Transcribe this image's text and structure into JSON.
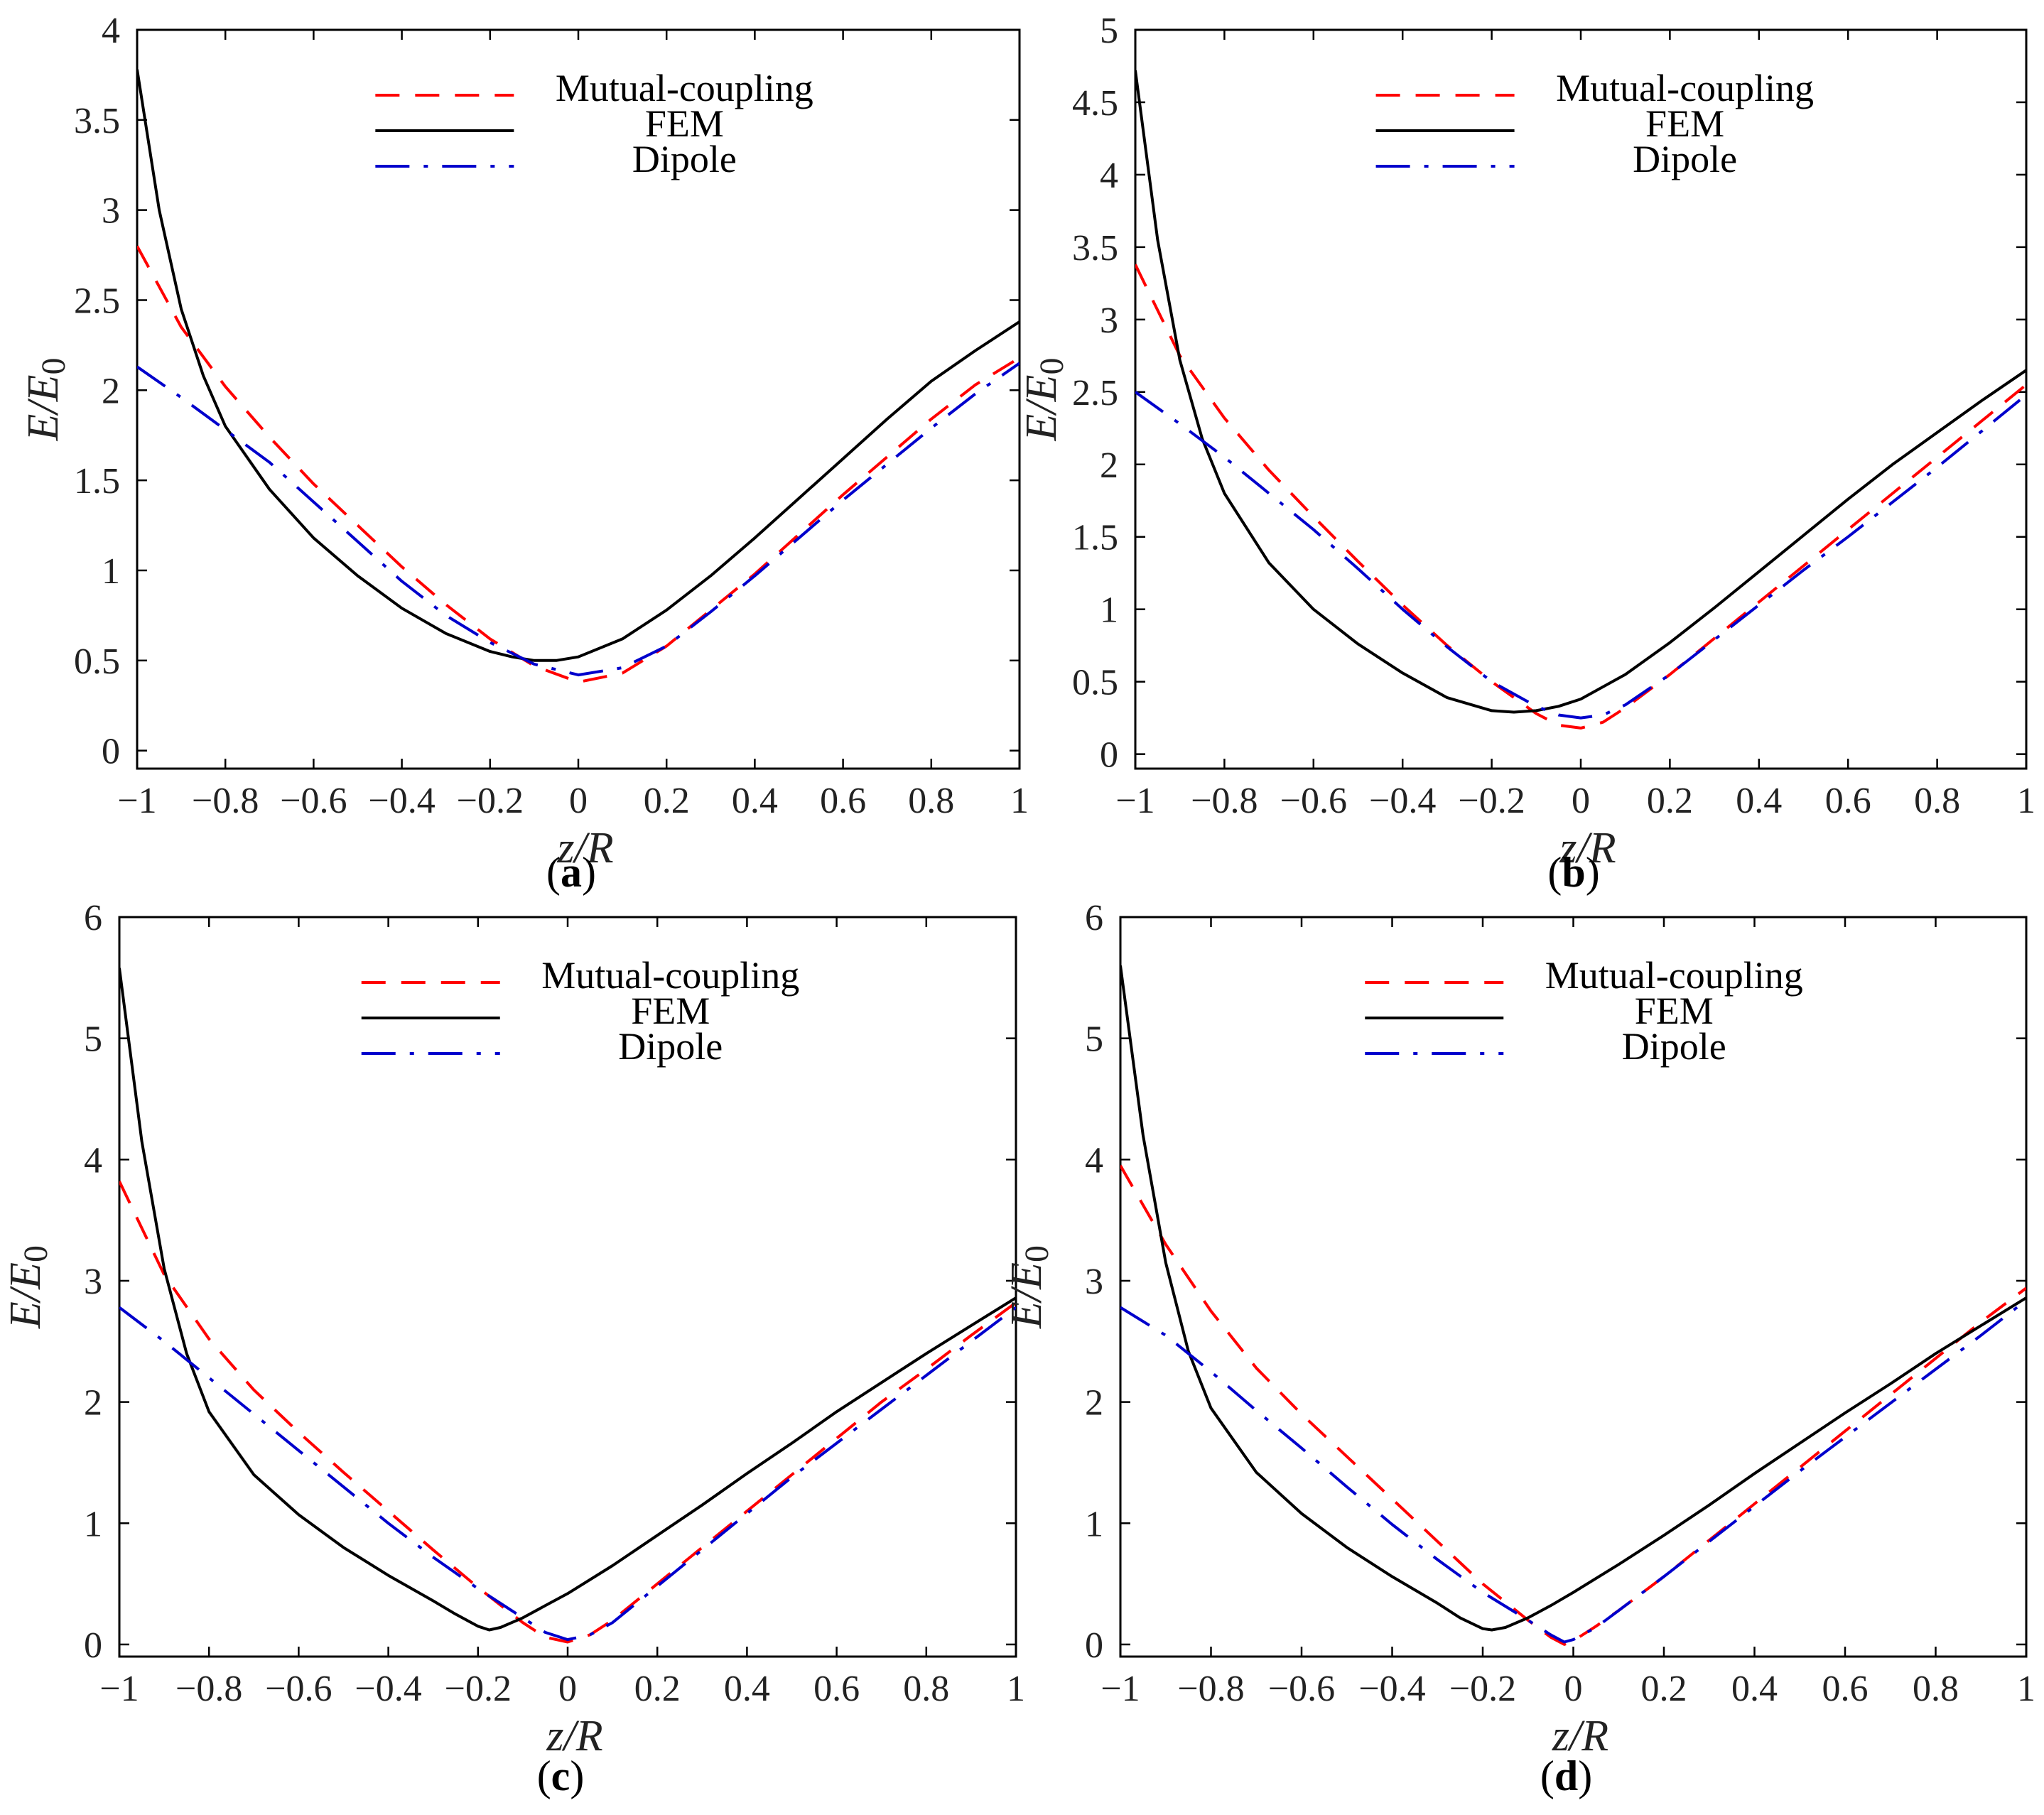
{
  "chart_data": [
    {
      "type": "line",
      "panel_label": "(a)",
      "panel_letter": "a",
      "xlabel": "z/R",
      "ylabel": "E/E0",
      "xlim": [
        -1,
        1
      ],
      "ylim": [
        -0.1,
        4
      ],
      "xticks": [
        -1,
        -0.8,
        -0.6,
        -0.4,
        -0.2,
        0,
        0.2,
        0.4,
        0.6,
        0.8,
        1
      ],
      "xtick_labels": [
        "−1",
        "−0.8",
        "−0.6",
        "−0.4",
        "−0.2",
        "0",
        "0.2",
        "0.4",
        "0.6",
        "0.8",
        "1"
      ],
      "yticks": [
        0,
        0.5,
        1,
        1.5,
        2,
        2.5,
        3,
        3.5,
        4
      ],
      "ytick_labels": [
        "0",
        "0.5",
        "1",
        "1.5",
        "2",
        "2.5",
        "3",
        "3.5",
        "4"
      ],
      "legend_position": "top-center",
      "series": [
        {
          "name": "Mutual-coupling",
          "color": "#ff0000",
          "style": "dashed",
          "x": [
            -1,
            -0.9,
            -0.8,
            -0.7,
            -0.6,
            -0.5,
            -0.4,
            -0.3,
            -0.2,
            -0.1,
            0,
            0.1,
            0.2,
            0.3,
            0.4,
            0.5,
            0.6,
            0.7,
            0.8,
            0.9,
            1
          ],
          "y": [
            2.8,
            2.35,
            2.02,
            1.74,
            1.48,
            1.25,
            1.02,
            0.81,
            0.62,
            0.47,
            0.38,
            0.43,
            0.58,
            0.78,
            0.98,
            1.2,
            1.42,
            1.63,
            1.84,
            2.03,
            2.18
          ]
        },
        {
          "name": "FEM",
          "color": "#000000",
          "style": "solid",
          "x": [
            -1,
            -0.95,
            -0.9,
            -0.85,
            -0.8,
            -0.7,
            -0.6,
            -0.5,
            -0.4,
            -0.3,
            -0.2,
            -0.15,
            -0.1,
            -0.05,
            0,
            0.1,
            0.2,
            0.3,
            0.4,
            0.5,
            0.6,
            0.7,
            0.8,
            0.9,
            1
          ],
          "y": [
            3.78,
            3.0,
            2.45,
            2.08,
            1.8,
            1.45,
            1.18,
            0.97,
            0.79,
            0.65,
            0.55,
            0.52,
            0.5,
            0.5,
            0.52,
            0.62,
            0.78,
            0.97,
            1.18,
            1.4,
            1.62,
            1.84,
            2.05,
            2.22,
            2.38
          ]
        },
        {
          "name": "Dipole",
          "color": "#0000cc",
          "style": "dashdot",
          "x": [
            -1,
            -0.9,
            -0.8,
            -0.7,
            -0.6,
            -0.5,
            -0.4,
            -0.3,
            -0.2,
            -0.1,
            0,
            0.1,
            0.2,
            0.3,
            0.4,
            0.5,
            0.6,
            0.7,
            0.8,
            0.9,
            1
          ],
          "y": [
            2.13,
            1.96,
            1.78,
            1.6,
            1.38,
            1.16,
            0.94,
            0.75,
            0.6,
            0.48,
            0.42,
            0.46,
            0.58,
            0.77,
            0.97,
            1.18,
            1.39,
            1.59,
            1.79,
            1.98,
            2.15
          ]
        }
      ]
    },
    {
      "type": "line",
      "panel_label": "(b)",
      "panel_letter": "b",
      "xlabel": "z/R",
      "ylabel": "E/E0",
      "xlim": [
        -1,
        1
      ],
      "ylim": [
        -0.1,
        5
      ],
      "xticks": [
        -1,
        -0.8,
        -0.6,
        -0.4,
        -0.2,
        0,
        0.2,
        0.4,
        0.6,
        0.8,
        1
      ],
      "xtick_labels": [
        "−1",
        "−0.8",
        "−0.6",
        "−0.4",
        "−0.2",
        "0",
        "0.2",
        "0.4",
        "0.6",
        "0.8",
        "1"
      ],
      "yticks": [
        0,
        0.5,
        1,
        1.5,
        2,
        2.5,
        3,
        3.5,
        4,
        4.5,
        5
      ],
      "ytick_labels": [
        "0",
        "0.5",
        "1",
        "1.5",
        "2",
        "2.5",
        "3",
        "3.5",
        "4",
        "4.5",
        "5"
      ],
      "legend_position": "top-center",
      "series": [
        {
          "name": "Mutual-coupling",
          "color": "#ff0000",
          "style": "dashed",
          "x": [
            -1,
            -0.9,
            -0.8,
            -0.7,
            -0.6,
            -0.5,
            -0.4,
            -0.3,
            -0.2,
            -0.1,
            -0.05,
            0,
            0.05,
            0.1,
            0.2,
            0.3,
            0.4,
            0.5,
            0.6,
            0.7,
            0.8,
            0.9,
            1
          ],
          "y": [
            3.38,
            2.75,
            2.32,
            1.96,
            1.64,
            1.33,
            1.03,
            0.75,
            0.5,
            0.28,
            0.2,
            0.18,
            0.22,
            0.32,
            0.55,
            0.8,
            1.05,
            1.3,
            1.55,
            1.8,
            2.05,
            2.3,
            2.55
          ]
        },
        {
          "name": "FEM",
          "color": "#000000",
          "style": "solid",
          "x": [
            -1,
            -0.95,
            -0.9,
            -0.85,
            -0.8,
            -0.7,
            -0.6,
            -0.5,
            -0.4,
            -0.3,
            -0.2,
            -0.15,
            -0.1,
            -0.05,
            0,
            0.1,
            0.2,
            0.3,
            0.4,
            0.5,
            0.6,
            0.7,
            0.8,
            0.9,
            1
          ],
          "y": [
            4.72,
            3.55,
            2.72,
            2.18,
            1.8,
            1.32,
            1.0,
            0.76,
            0.56,
            0.39,
            0.3,
            0.29,
            0.3,
            0.33,
            0.38,
            0.55,
            0.77,
            1.01,
            1.26,
            1.51,
            1.76,
            2.0,
            2.22,
            2.44,
            2.65
          ]
        },
        {
          "name": "Dipole",
          "color": "#0000cc",
          "style": "dashdot",
          "x": [
            -1,
            -0.9,
            -0.8,
            -0.7,
            -0.6,
            -0.5,
            -0.4,
            -0.3,
            -0.2,
            -0.1,
            -0.05,
            0,
            0.05,
            0.1,
            0.2,
            0.3,
            0.4,
            0.5,
            0.6,
            0.7,
            0.8,
            0.9,
            1
          ],
          "y": [
            2.5,
            2.28,
            2.05,
            1.8,
            1.55,
            1.28,
            1.0,
            0.74,
            0.5,
            0.33,
            0.27,
            0.25,
            0.27,
            0.34,
            0.55,
            0.79,
            1.03,
            1.27,
            1.5,
            1.74,
            1.98,
            2.23,
            2.48
          ]
        }
      ]
    },
    {
      "type": "line",
      "panel_label": "(c)",
      "panel_letter": "c",
      "xlabel": "z/R",
      "ylabel": "E/E0",
      "xlim": [
        -1,
        1
      ],
      "ylim": [
        -0.1,
        6
      ],
      "xticks": [
        -1,
        -0.8,
        -0.6,
        -0.4,
        -0.2,
        0,
        0.2,
        0.4,
        0.6,
        0.8,
        1
      ],
      "xtick_labels": [
        "−1",
        "−0.8",
        "−0.6",
        "−0.4",
        "−0.2",
        "0",
        "0.2",
        "0.4",
        "0.6",
        "0.8",
        "1"
      ],
      "yticks": [
        0,
        1,
        2,
        3,
        4,
        5,
        6
      ],
      "ytick_labels": [
        "0",
        "1",
        "2",
        "3",
        "4",
        "5",
        "6"
      ],
      "legend_position": "top-center",
      "series": [
        {
          "name": "Mutual-coupling",
          "color": "#ff0000",
          "style": "dashed",
          "x": [
            -1,
            -0.9,
            -0.8,
            -0.7,
            -0.6,
            -0.5,
            -0.4,
            -0.3,
            -0.2,
            -0.1,
            -0.05,
            0,
            0.05,
            0.1,
            0.2,
            0.3,
            0.4,
            0.5,
            0.6,
            0.7,
            0.8,
            0.9,
            1
          ],
          "y": [
            3.82,
            3.05,
            2.52,
            2.1,
            1.75,
            1.42,
            1.1,
            0.78,
            0.47,
            0.18,
            0.06,
            0.02,
            0.08,
            0.2,
            0.5,
            0.8,
            1.1,
            1.4,
            1.7,
            2.0,
            2.27,
            2.55,
            2.82
          ]
        },
        {
          "name": "FEM",
          "color": "#000000",
          "style": "solid",
          "x": [
            -1,
            -0.95,
            -0.9,
            -0.85,
            -0.8,
            -0.7,
            -0.6,
            -0.5,
            -0.4,
            -0.3,
            -0.25,
            -0.2,
            -0.175,
            -0.15,
            -0.1,
            -0.05,
            0,
            0.1,
            0.2,
            0.3,
            0.4,
            0.5,
            0.6,
            0.7,
            0.8,
            0.9,
            1
          ],
          "y": [
            5.58,
            4.15,
            3.1,
            2.4,
            1.92,
            1.4,
            1.07,
            0.8,
            0.57,
            0.36,
            0.25,
            0.15,
            0.12,
            0.14,
            0.22,
            0.32,
            0.42,
            0.65,
            0.9,
            1.15,
            1.41,
            1.66,
            1.92,
            2.16,
            2.4,
            2.63,
            2.86
          ]
        },
        {
          "name": "Dipole",
          "color": "#0000cc",
          "style": "dashdot",
          "x": [
            -1,
            -0.9,
            -0.8,
            -0.7,
            -0.6,
            -0.5,
            -0.4,
            -0.3,
            -0.2,
            -0.1,
            -0.05,
            0,
            0.05,
            0.1,
            0.2,
            0.3,
            0.4,
            0.5,
            0.6,
            0.7,
            0.8,
            0.9,
            1
          ],
          "y": [
            2.78,
            2.5,
            2.2,
            1.9,
            1.6,
            1.3,
            1.0,
            0.72,
            0.46,
            0.22,
            0.1,
            0.04,
            0.08,
            0.18,
            0.48,
            0.78,
            1.08,
            1.38,
            1.66,
            1.94,
            2.22,
            2.5,
            2.78
          ]
        }
      ]
    },
    {
      "type": "line",
      "panel_label": "(d)",
      "panel_letter": "d",
      "xlabel": "z/R",
      "ylabel": "E/E0",
      "xlim": [
        -1,
        1
      ],
      "ylim": [
        -0.1,
        6
      ],
      "xticks": [
        -1,
        -0.8,
        -0.6,
        -0.4,
        -0.2,
        0,
        0.2,
        0.4,
        0.6,
        0.8,
        1
      ],
      "xtick_labels": [
        "−1",
        "−0.8",
        "−0.6",
        "−0.4",
        "−0.2",
        "0",
        "0.2",
        "0.4",
        "0.6",
        "0.8",
        "1"
      ],
      "yticks": [
        0,
        1,
        2,
        3,
        4,
        5,
        6
      ],
      "ytick_labels": [
        "0",
        "1",
        "2",
        "3",
        "4",
        "5",
        "6"
      ],
      "legend_position": "top-center",
      "series": [
        {
          "name": "Mutual-coupling",
          "color": "#ff0000",
          "style": "dashed",
          "x": [
            -1,
            -0.9,
            -0.8,
            -0.7,
            -0.6,
            -0.5,
            -0.4,
            -0.3,
            -0.2,
            -0.1,
            -0.05,
            -0.02,
            0,
            0.05,
            0.1,
            0.2,
            0.3,
            0.4,
            0.5,
            0.6,
            0.7,
            0.8,
            0.9,
            1
          ],
          "y": [
            3.95,
            3.3,
            2.75,
            2.28,
            1.9,
            1.55,
            1.2,
            0.85,
            0.5,
            0.2,
            0.06,
            0.0,
            0.03,
            0.15,
            0.28,
            0.56,
            0.86,
            1.16,
            1.46,
            1.76,
            2.06,
            2.36,
            2.66,
            2.94
          ]
        },
        {
          "name": "FEM",
          "color": "#000000",
          "style": "solid",
          "x": [
            -1,
            -0.95,
            -0.9,
            -0.85,
            -0.8,
            -0.7,
            -0.6,
            -0.5,
            -0.4,
            -0.3,
            -0.25,
            -0.2,
            -0.18,
            -0.15,
            -0.1,
            -0.05,
            0,
            0.1,
            0.2,
            0.3,
            0.4,
            0.5,
            0.6,
            0.7,
            0.8,
            0.9,
            1
          ],
          "y": [
            5.6,
            4.2,
            3.15,
            2.42,
            1.95,
            1.42,
            1.08,
            0.8,
            0.56,
            0.34,
            0.22,
            0.13,
            0.12,
            0.14,
            0.22,
            0.32,
            0.43,
            0.66,
            0.9,
            1.15,
            1.41,
            1.66,
            1.91,
            2.15,
            2.4,
            2.63,
            2.86
          ]
        },
        {
          "name": "Dipole",
          "color": "#0000cc",
          "style": "dashdot",
          "x": [
            -1,
            -0.9,
            -0.8,
            -0.7,
            -0.6,
            -0.5,
            -0.4,
            -0.3,
            -0.2,
            -0.1,
            -0.05,
            -0.02,
            0,
            0.05,
            0.1,
            0.2,
            0.3,
            0.4,
            0.5,
            0.6,
            0.7,
            0.8,
            0.9,
            1
          ],
          "y": [
            2.78,
            2.55,
            2.25,
            1.93,
            1.62,
            1.3,
            0.99,
            0.7,
            0.43,
            0.2,
            0.08,
            0.02,
            0.04,
            0.14,
            0.28,
            0.56,
            0.85,
            1.14,
            1.43,
            1.71,
            1.99,
            2.27,
            2.55,
            2.84
          ]
        }
      ]
    }
  ]
}
